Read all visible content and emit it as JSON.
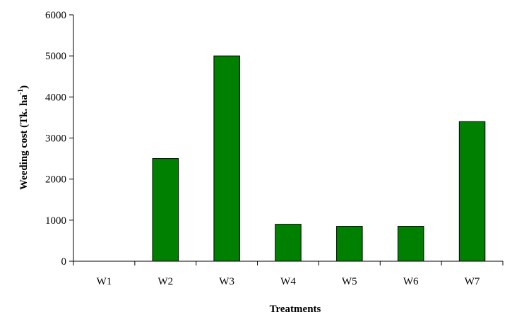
{
  "chart_data": {
    "type": "bar",
    "categories": [
      "W1",
      "W2",
      "W3",
      "W4",
      "W5",
      "W6",
      "W7"
    ],
    "series": [
      {
        "values": [
          0,
          2500,
          5000,
          900,
          850,
          850,
          3400
        ]
      }
    ],
    "xlabel": "Treatments",
    "ylabel_main": "Weeding cost (Tk. ha",
    "ylabel_sup": "-1",
    "ylabel_end": ")",
    "ylim": [
      0,
      6000
    ],
    "yticks": [
      0,
      1000,
      2000,
      3000,
      4000,
      5000,
      6000
    ],
    "grid": false,
    "legend": "none",
    "bar_color": "#008000",
    "bar_outline_color": "#000000"
  }
}
